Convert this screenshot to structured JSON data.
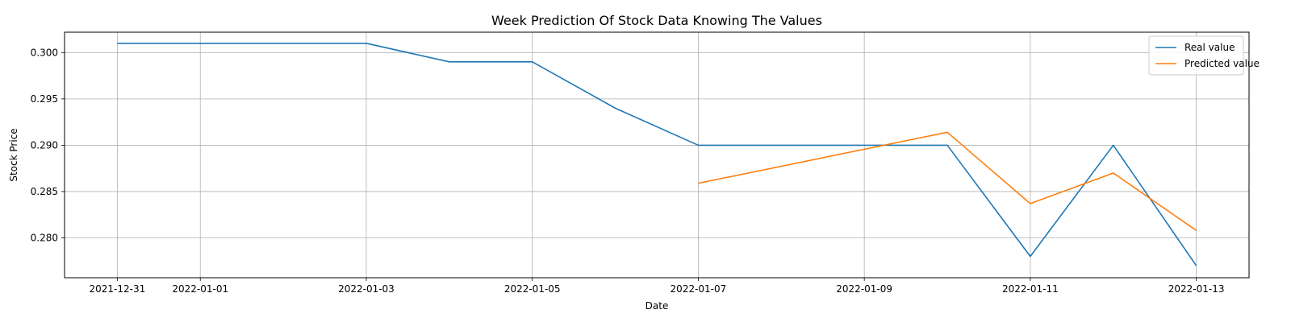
{
  "chart_data": {
    "type": "line",
    "title": "Week Prediction Of Stock Data Knowing The Values",
    "xlabel": "Date",
    "ylabel": "Stock Price",
    "x_ticks": [
      "2021-12-31",
      "2022-01-01",
      "2022-01-03",
      "2022-01-05",
      "2022-01-07",
      "2022-01-09",
      "2022-01-11",
      "2022-01-13"
    ],
    "y_ticks": [
      "0.280",
      "0.285",
      "0.290",
      "0.295",
      "0.300"
    ],
    "xlim": [
      "2021-12-30 08:45",
      "2022-01-13 15:15"
    ],
    "ylim": [
      0.2757,
      0.3022
    ],
    "grid": true,
    "legend_position": "top-right",
    "series": [
      {
        "name": "Real value",
        "color": "#1f77b4",
        "points": [
          {
            "x": "2021-12-31",
            "y": 0.301
          },
          {
            "x": "2022-01-03",
            "y": 0.301
          },
          {
            "x": "2022-01-04",
            "y": 0.299
          },
          {
            "x": "2022-01-05",
            "y": 0.299
          },
          {
            "x": "2022-01-06",
            "y": 0.294
          },
          {
            "x": "2022-01-07",
            "y": 0.29
          },
          {
            "x": "2022-01-10",
            "y": 0.29
          },
          {
            "x": "2022-01-11",
            "y": 0.278
          },
          {
            "x": "2022-01-12",
            "y": 0.29
          },
          {
            "x": "2022-01-13",
            "y": 0.277
          }
        ]
      },
      {
        "name": "Predicted value",
        "color": "#ff7f0e",
        "points": [
          {
            "x": "2022-01-07",
            "y": 0.2859
          },
          {
            "x": "2022-01-10",
            "y": 0.2914
          },
          {
            "x": "2022-01-11",
            "y": 0.2837
          },
          {
            "x": "2022-01-12",
            "y": 0.287
          },
          {
            "x": "2022-01-13",
            "y": 0.2808
          }
        ]
      }
    ]
  }
}
